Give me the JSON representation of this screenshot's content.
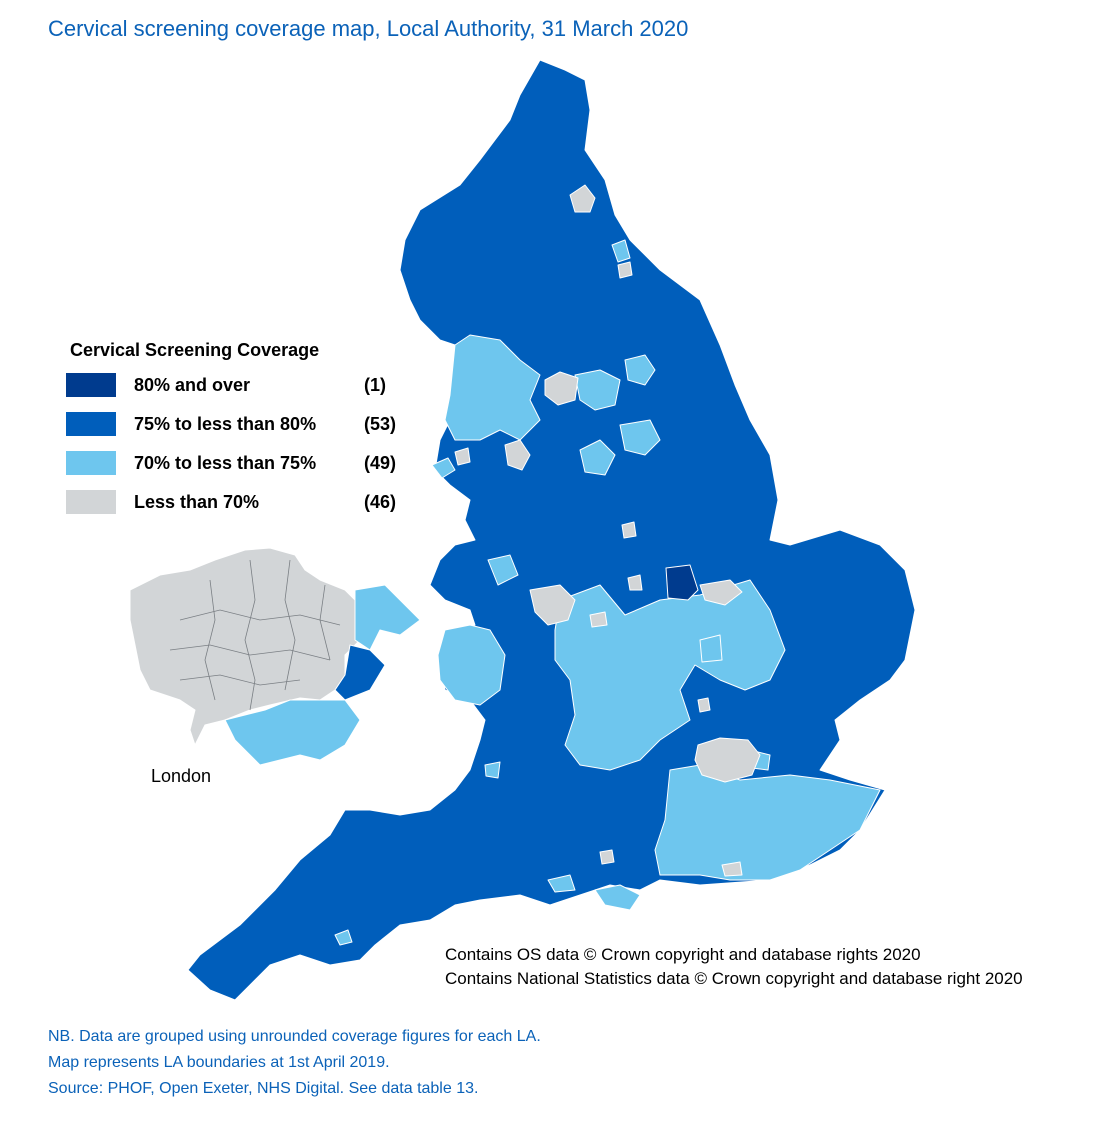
{
  "title": "Cervical screening coverage map, Local Authority, 31 March 2020",
  "legend": {
    "title": "Cervical Screening Coverage",
    "items": [
      {
        "label": "80% and over",
        "count": "(1)",
        "color": "#003b8e"
      },
      {
        "label": "75% to less than 80%",
        "count": "(53)",
        "color": "#005ebb"
      },
      {
        "label": "70% to less than 75%",
        "count": "(49)",
        "color": "#6ec6ee"
      },
      {
        "label": "Less than 70%",
        "count": "(46)",
        "color": "#d2d5d7"
      }
    ]
  },
  "inset": {
    "label": "London"
  },
  "credits": [
    "Contains OS data © Crown copyright and database rights 2020",
    "Contains National Statistics data © Crown copyright and database right 2020"
  ],
  "notes": [
    "NB. Data are grouped using unrounded coverage figures for each LA.",
    "Map represents LA boundaries at 1st April 2019.",
    "Source: PHOF, Open Exeter, NHS Digital. See data table 13."
  ]
}
